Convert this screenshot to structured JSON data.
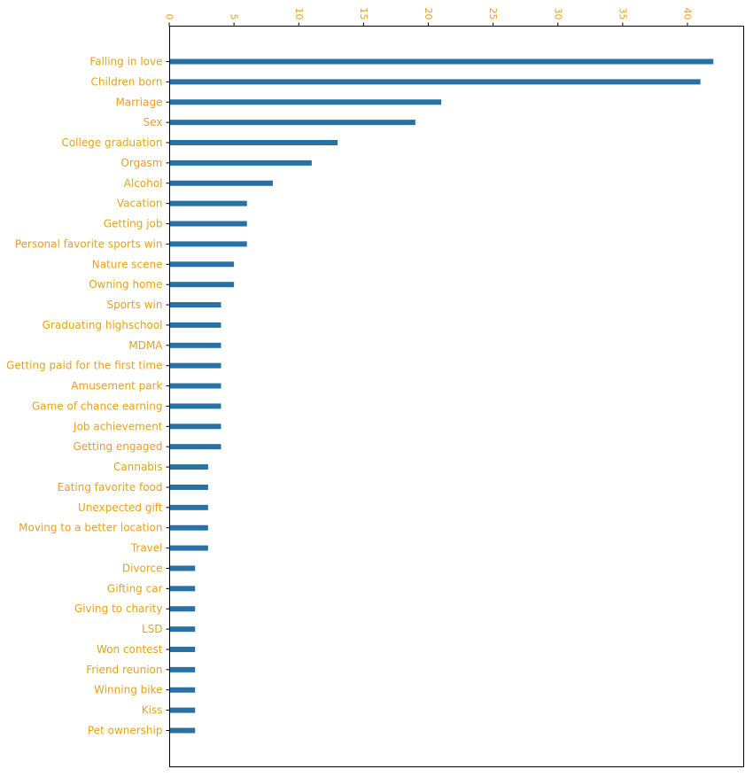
{
  "chart_data": {
    "type": "bar",
    "orientation": "horizontal",
    "title": "",
    "xlabel": "",
    "ylabel": "",
    "xlim": [
      0,
      44.3
    ],
    "x_ticks": [
      0,
      5,
      10,
      15,
      20,
      25,
      30,
      35,
      40
    ],
    "x_axis_position": "top",
    "x_tick_label_rotation": "vertical",
    "grid": false,
    "categories": [
      "Falling in love",
      "Children born",
      "Marriage",
      "Sex",
      "College graduation",
      "Orgasm",
      "Alcohol",
      "Vacation",
      "Getting job",
      "Personal favorite sports win",
      "Nature scene",
      "Owning home",
      "Sports win",
      "Graduating highschool",
      "MDMA",
      "Getting paid for the first time",
      "Amusement park",
      "Game of chance earning",
      "Job achievement",
      "Getting engaged",
      "Cannabis",
      "Eating favorite food",
      "Unexpected gift",
      "Moving to a better location",
      "Travel",
      "Divorce",
      "Gifting car",
      "Giving to charity",
      "LSD",
      "Won contest",
      "Friend reunion",
      "Winning bike",
      "Kiss",
      "Pet ownership"
    ],
    "values": [
      42,
      41,
      21,
      19,
      13,
      11,
      8,
      6,
      6,
      6,
      5,
      5,
      4,
      4,
      4,
      4,
      4,
      4,
      4,
      4,
      3,
      3,
      3,
      3,
      3,
      2,
      2,
      2,
      2,
      2,
      2,
      2,
      2,
      2
    ],
    "colors": {
      "bar": "#2871a4",
      "label": "#e6a219",
      "axis": "#000000"
    }
  }
}
